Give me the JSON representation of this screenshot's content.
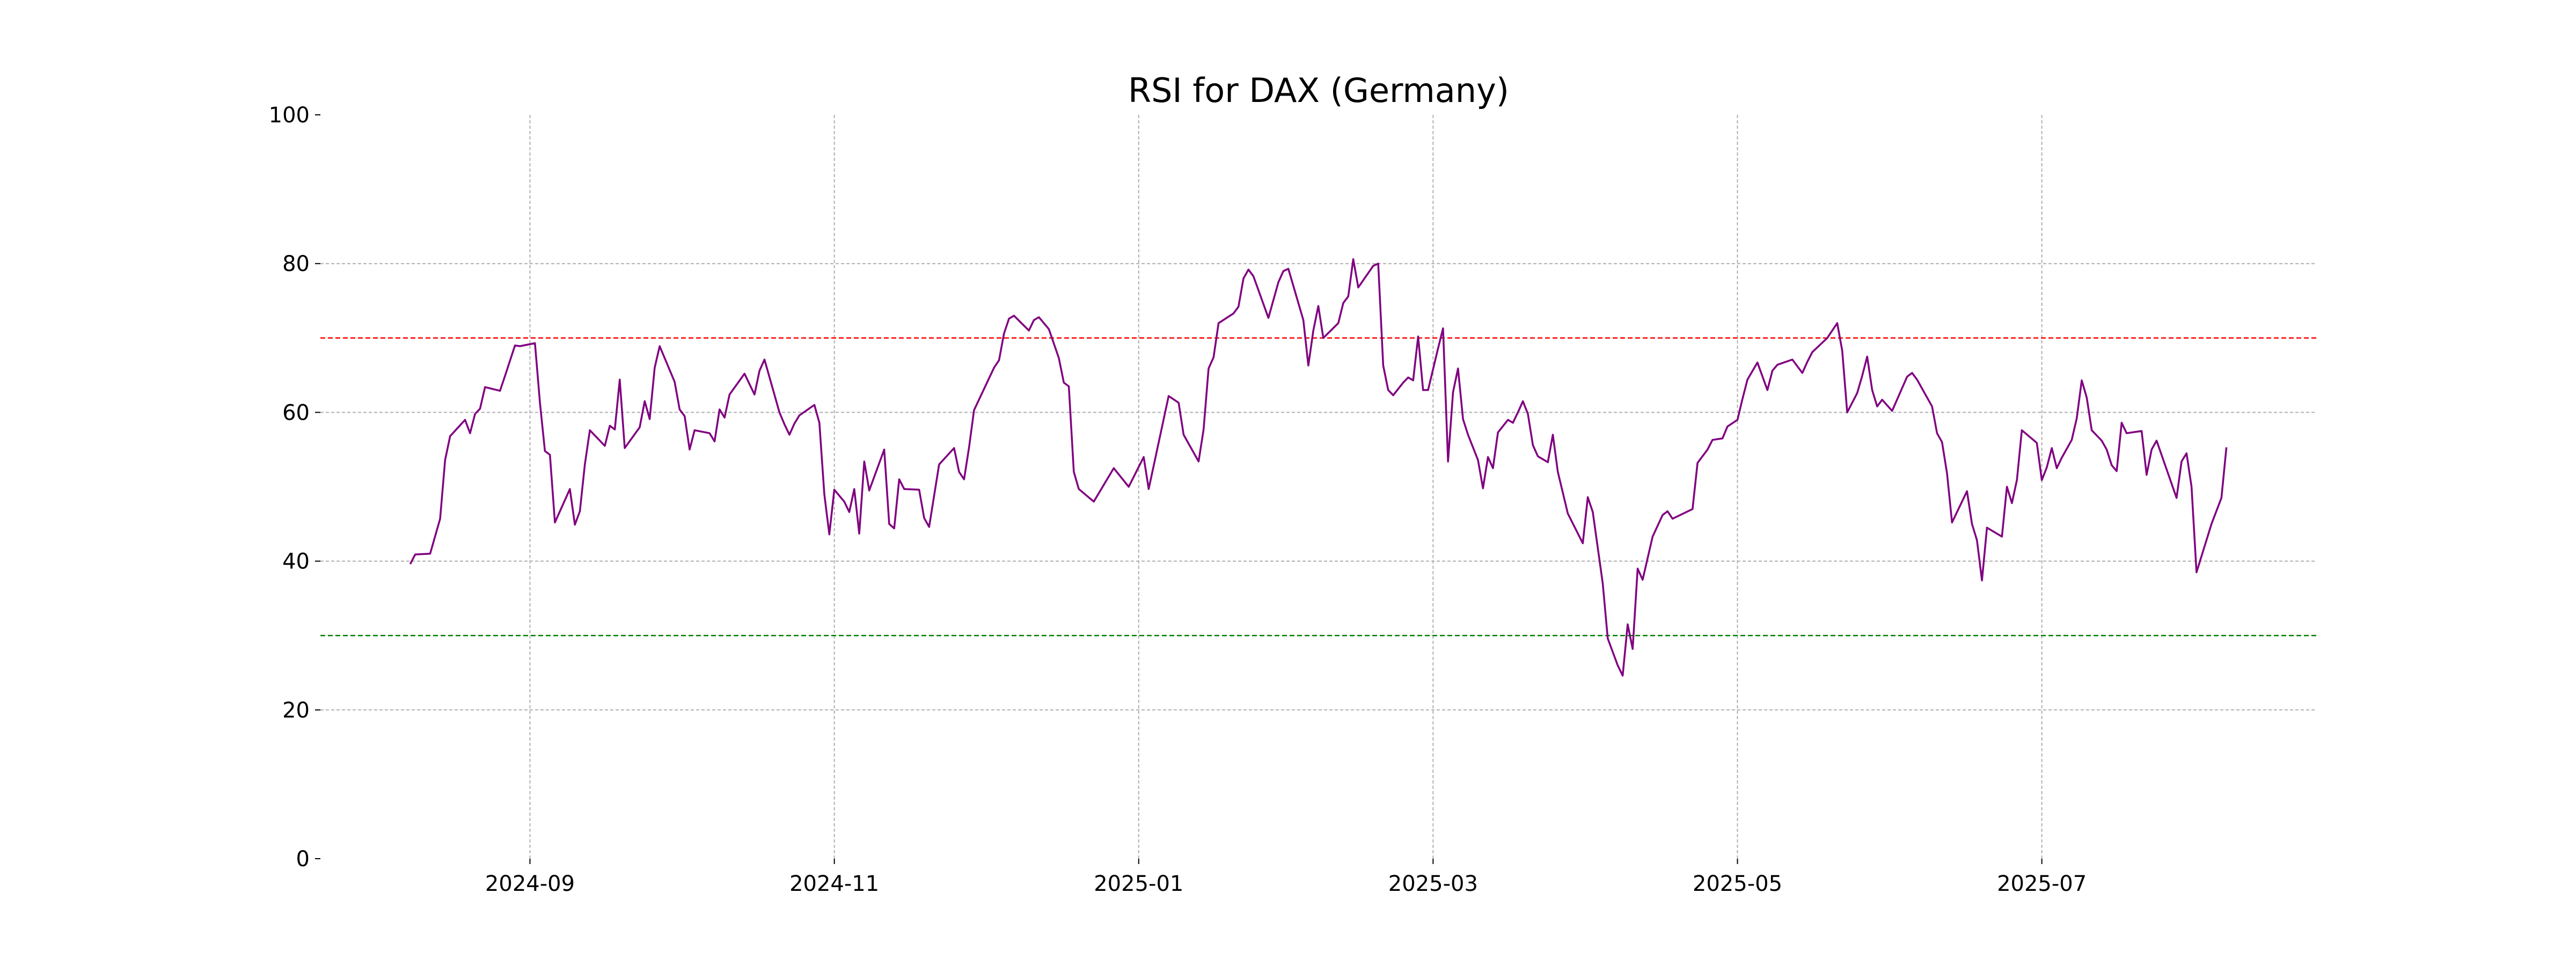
{
  "chart_data": {
    "type": "line",
    "title": "RSI for DAX (Germany)",
    "xlabel": "",
    "ylabel": "",
    "xlim": [
      "2024-07-21",
      "2025-08-25"
    ],
    "ylim": [
      0,
      100
    ],
    "grid": true,
    "x_ticks": [
      "2024-09",
      "2024-11",
      "2025-01",
      "2025-03",
      "2025-05",
      "2025-07"
    ],
    "y_ticks": [
      0,
      20,
      40,
      60,
      80,
      100
    ],
    "reference_lines": [
      {
        "value": 70,
        "color": "#ff0000"
      },
      {
        "value": 30,
        "color": "#008000"
      }
    ],
    "series": [
      {
        "color": "#800080",
        "x": [
          "2024-08-08",
          "2024-08-09",
          "2024-08-12",
          "2024-08-14",
          "2024-08-15",
          "2024-08-16",
          "2024-08-19",
          "2024-08-20",
          "2024-08-21",
          "2024-08-22",
          "2024-08-23",
          "2024-08-26",
          "2024-08-27",
          "2024-08-29",
          "2024-08-30",
          "2024-09-02",
          "2024-09-03",
          "2024-09-04",
          "2024-09-05",
          "2024-09-06",
          "2024-09-09",
          "2024-09-10",
          "2024-09-11",
          "2024-09-12",
          "2024-09-13",
          "2024-09-16",
          "2024-09-17",
          "2024-09-18",
          "2024-09-19",
          "2024-09-20",
          "2024-09-23",
          "2024-09-24",
          "2024-09-25",
          "2024-09-26",
          "2024-09-27",
          "2024-09-30",
          "2024-10-01",
          "2024-10-02",
          "2024-10-03",
          "2024-10-04",
          "2024-10-07",
          "2024-10-08",
          "2024-10-09",
          "2024-10-10",
          "2024-10-11",
          "2024-10-14",
          "2024-10-15",
          "2024-10-16",
          "2024-10-17",
          "2024-10-18",
          "2024-10-21",
          "2024-10-22",
          "2024-10-23",
          "2024-10-24",
          "2024-10-25",
          "2024-10-28",
          "2024-10-29",
          "2024-10-30",
          "2024-10-31",
          "2024-11-01",
          "2024-11-03",
          "2024-11-04",
          "2024-11-05",
          "2024-11-06",
          "2024-11-07",
          "2024-11-08",
          "2024-11-11",
          "2024-11-12",
          "2024-11-13",
          "2024-11-14",
          "2024-11-15",
          "2024-11-18",
          "2024-11-19",
          "2024-11-20",
          "2024-11-22",
          "2024-11-25",
          "2024-11-26",
          "2024-11-27",
          "2024-11-28",
          "2024-11-29",
          "2024-12-03",
          "2024-12-04",
          "2024-12-05",
          "2024-12-06",
          "2024-12-07",
          "2024-12-10",
          "2024-12-11",
          "2024-12-12",
          "2024-12-14",
          "2024-12-16",
          "2024-12-17",
          "2024-12-18",
          "2024-12-19",
          "2024-12-20",
          "2024-12-23",
          "2024-12-27",
          "2024-12-30",
          "2025-01-02",
          "2025-01-03",
          "2025-01-07",
          "2025-01-09",
          "2025-01-10",
          "2025-01-13",
          "2025-01-14",
          "2025-01-15",
          "2025-01-16",
          "2025-01-17",
          "2025-01-20",
          "2025-01-21",
          "2025-01-22",
          "2025-01-23",
          "2025-01-24",
          "2025-01-27",
          "2025-01-29",
          "2025-01-30",
          "2025-01-31",
          "2025-02-03",
          "2025-02-04",
          "2025-02-05",
          "2025-02-06",
          "2025-02-07",
          "2025-02-10",
          "2025-02-11",
          "2025-02-12",
          "2025-02-13",
          "2025-02-14",
          "2025-02-17",
          "2025-02-18",
          "2025-02-19",
          "2025-02-20",
          "2025-02-21",
          "2025-02-23",
          "2025-02-24",
          "2025-02-25",
          "2025-02-26",
          "2025-02-27",
          "2025-02-28",
          "2025-03-02",
          "2025-03-03",
          "2025-03-04",
          "2025-03-05",
          "2025-03-06",
          "2025-03-07",
          "2025-03-08",
          "2025-03-10",
          "2025-03-11",
          "2025-03-12",
          "2025-03-13",
          "2025-03-14",
          "2025-03-16",
          "2025-03-17",
          "2025-03-18",
          "2025-03-19",
          "2025-03-20",
          "2025-03-21",
          "2025-03-22",
          "2025-03-24",
          "2025-03-25",
          "2025-03-26",
          "2025-03-27",
          "2025-03-28",
          "2025-03-31",
          "2025-04-01",
          "2025-04-02",
          "2025-04-04",
          "2025-04-05",
          "2025-04-07",
          "2025-04-08",
          "2025-04-09",
          "2025-04-10",
          "2025-04-11",
          "2025-04-12",
          "2025-04-13",
          "2025-04-14",
          "2025-04-16",
          "2025-04-17",
          "2025-04-18",
          "2025-04-22",
          "2025-04-23",
          "2025-04-25",
          "2025-04-26",
          "2025-04-28",
          "2025-04-29",
          "2025-05-01",
          "2025-05-02",
          "2025-05-03",
          "2025-05-05",
          "2025-05-07",
          "2025-05-08",
          "2025-05-09",
          "2025-05-12",
          "2025-05-14",
          "2025-05-15",
          "2025-05-16",
          "2025-05-19",
          "2025-05-21",
          "2025-05-22",
          "2025-05-23",
          "2025-05-25",
          "2025-05-26",
          "2025-05-27",
          "2025-05-28",
          "2025-05-29",
          "2025-05-30",
          "2025-06-01",
          "2025-06-04",
          "2025-06-05",
          "2025-06-06",
          "2025-06-09",
          "2025-06-10",
          "2025-06-11",
          "2025-06-12",
          "2025-06-13",
          "2025-06-15",
          "2025-06-16",
          "2025-06-17",
          "2025-06-18",
          "2025-06-19",
          "2025-06-20",
          "2025-06-23",
          "2025-06-24",
          "2025-06-25",
          "2025-06-26",
          "2025-06-27",
          "2025-06-30",
          "2025-07-01",
          "2025-07-02",
          "2025-07-03",
          "2025-07-04",
          "2025-07-05",
          "2025-07-07",
          "2025-07-08",
          "2025-07-09",
          "2025-07-10",
          "2025-07-11",
          "2025-07-13",
          "2025-07-14",
          "2025-07-15",
          "2025-07-16",
          "2025-07-17",
          "2025-07-18",
          "2025-07-21",
          "2025-07-22",
          "2025-07-23",
          "2025-07-24",
          "2025-07-28",
          "2025-07-29",
          "2025-07-30",
          "2025-07-31",
          "2025-08-01",
          "2025-08-04",
          "2025-08-06",
          "2025-08-07"
        ],
        "y": [
          39.6,
          40.9,
          41,
          45.7,
          53.6,
          56.8,
          59,
          57.2,
          59.8,
          60.5,
          63.4,
          62.9,
          64.9,
          69,
          68.9,
          69.3,
          61.3,
          54.8,
          54.3,
          45.2,
          49.7,
          44.9,
          46.7,
          53,
          57.6,
          55.5,
          58.2,
          57.7,
          64.4,
          55.2,
          58,
          61.5,
          59.1,
          66,
          68.9,
          64.1,
          60.4,
          59.5,
          55,
          57.6,
          57.2,
          56.1,
          60.4,
          59.3,
          62.4,
          65.2,
          63.8,
          62.4,
          65.6,
          67.1,
          60,
          58.4,
          57,
          58.5,
          59.6,
          61,
          58.6,
          49,
          43.6,
          49.6,
          48,
          46.6,
          49.7,
          43.7,
          53.4,
          49.5,
          55,
          45,
          44.4,
          51,
          49.7,
          49.6,
          45.8,
          44.6,
          53,
          55.2,
          52,
          51,
          55.3,
          60.3,
          66,
          67,
          70.6,
          72.6,
          73,
          71,
          72.4,
          72.8,
          71.2,
          67.3,
          64,
          63.5,
          52,
          49.7,
          48,
          52.5,
          50,
          54,
          49.7,
          62.2,
          61.3,
          57,
          53.4,
          57.7,
          65.9,
          67.4,
          72,
          73.3,
          74.2,
          78,
          79.2,
          78.3,
          72.7,
          77.5,
          79,
          79.3,
          72.4,
          66.3,
          71,
          74.3,
          70,
          72,
          74.7,
          75.6,
          80.6,
          76.8,
          79.7,
          80,
          66.3,
          63,
          62.3,
          64,
          64.7,
          64.3,
          70.2,
          63,
          63,
          68.6,
          71.3,
          53.4,
          62.7,
          65.9,
          59.1,
          57,
          53.6,
          49.8,
          54,
          52.5,
          57.3,
          59,
          58.6,
          60,
          61.5,
          59.8,
          55.6,
          54.1,
          53.3,
          57,
          52,
          49.2,
          46.4,
          42.4,
          48.6,
          46.6,
          37,
          29.6,
          26,
          24.6,
          31.5,
          28.2,
          39,
          37.5,
          40.4,
          43.3,
          46.2,
          46.7,
          45.7,
          47,
          53.2,
          55,
          56.3,
          56.5,
          58.1,
          59,
          61.8,
          64.4,
          66.7,
          63,
          65.6,
          66.4,
          67.1,
          65.3,
          66.8,
          68.1,
          70,
          72,
          68.3,
          60,
          62.6,
          64.9,
          67.5,
          63,
          60.8,
          61.7,
          60.2,
          64.8,
          65.3,
          64.4,
          60.8,
          57.2,
          56,
          51.8,
          45.2,
          48,
          49.4,
          45,
          42.8,
          37.4,
          44.5,
          43.3,
          50,
          47.8,
          50.9,
          57.6,
          55.9,
          50.9,
          52.6,
          55.2,
          52.5,
          53.9,
          56.3,
          59.2,
          64.3,
          62,
          57.6,
          56.2,
          55,
          52.9,
          52.1,
          58.6,
          57.2,
          57.5,
          51.6,
          55,
          56.2,
          48.5,
          53.4,
          54.5,
          50,
          38.5,
          45,
          48.5,
          55.3
        ]
      }
    ]
  }
}
